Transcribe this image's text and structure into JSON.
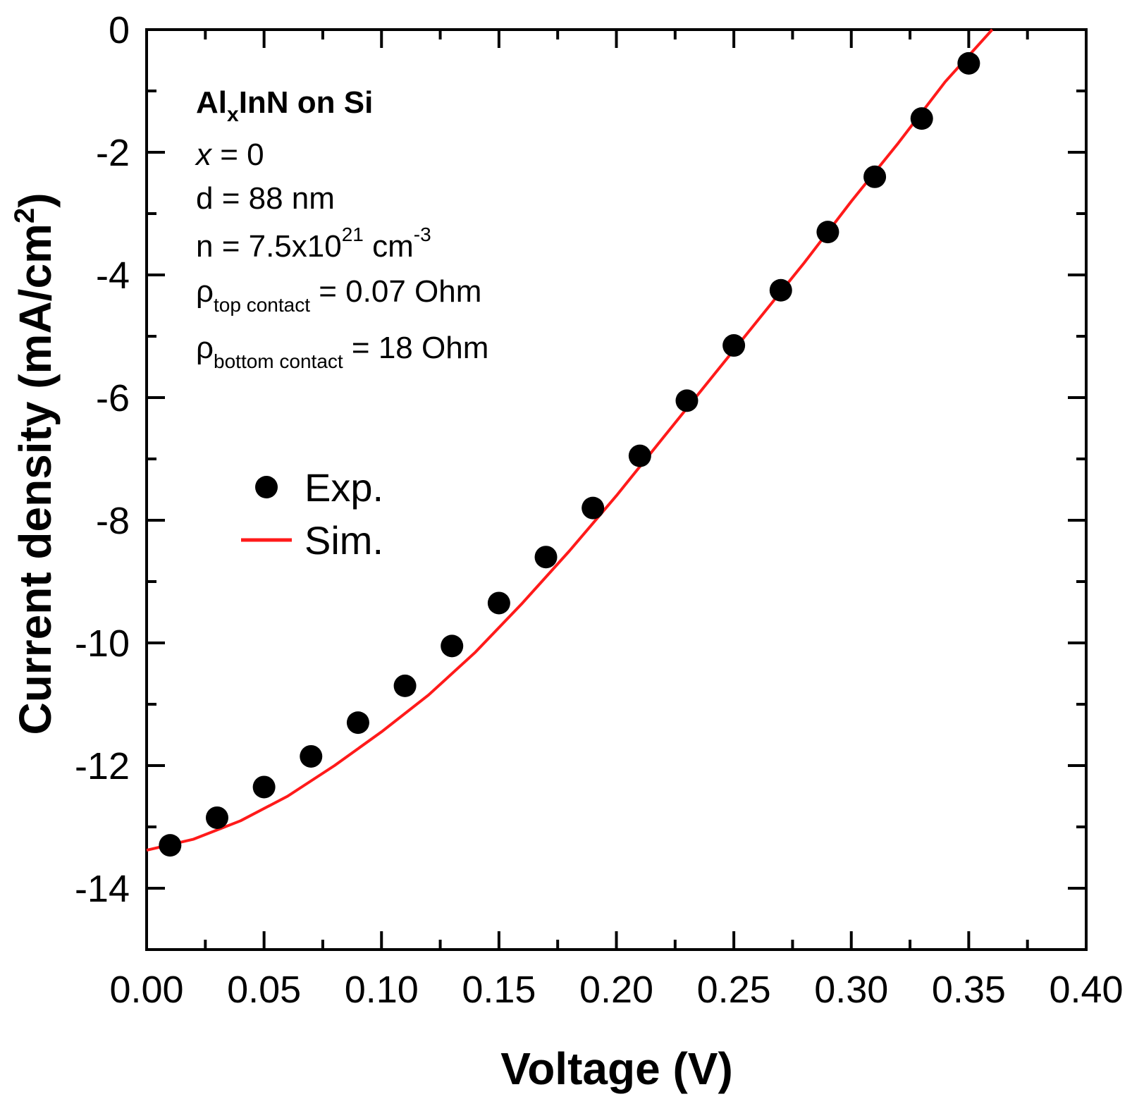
{
  "chart_data": {
    "type": "scatter",
    "title": "",
    "xlabel": "Voltage (V)",
    "ylabel": {
      "main": "Current density (mA/cm",
      "sup": "2",
      "close": ")"
    },
    "xlim": [
      0.0,
      0.4
    ],
    "ylim": [
      -15,
      0
    ],
    "x_ticks": [
      "0.00",
      "0.05",
      "0.10",
      "0.15",
      "0.20",
      "0.25",
      "0.30",
      "0.35",
      "0.40"
    ],
    "y_ticks": [
      "0",
      "-2",
      "-4",
      "-6",
      "-8",
      "-10",
      "-12",
      "-14"
    ],
    "grid": false,
    "legend_position": "middle-left",
    "series": [
      {
        "name": "Exp.",
        "kind": "markers",
        "color": "#000000",
        "x": [
          0.01,
          0.03,
          0.05,
          0.07,
          0.09,
          0.11,
          0.13,
          0.15,
          0.17,
          0.19,
          0.21,
          0.23,
          0.25,
          0.27,
          0.29,
          0.31,
          0.33,
          0.35
        ],
        "y": [
          -13.3,
          -12.85,
          -12.35,
          -11.85,
          -11.3,
          -10.7,
          -10.05,
          -9.35,
          -8.6,
          -7.8,
          -6.95,
          -6.05,
          -5.15,
          -4.25,
          -3.3,
          -2.4,
          -1.45,
          -0.55
        ]
      },
      {
        "name": "Sim.",
        "kind": "line",
        "color": "#ff1a1a",
        "x": [
          0.0,
          0.02,
          0.04,
          0.06,
          0.08,
          0.1,
          0.12,
          0.14,
          0.16,
          0.18,
          0.2,
          0.22,
          0.24,
          0.26,
          0.28,
          0.3,
          0.32,
          0.34,
          0.36
        ],
        "y": [
          -13.38,
          -13.2,
          -12.9,
          -12.5,
          -12.0,
          -11.45,
          -10.85,
          -10.15,
          -9.35,
          -8.5,
          -7.6,
          -6.65,
          -5.7,
          -4.75,
          -3.8,
          -2.8,
          -1.85,
          -0.85,
          0.1
        ]
      }
    ],
    "annotations": {
      "sample_title": {
        "pre": "Al",
        "sub": "x",
        "post": "InN on Si"
      },
      "composition": {
        "var": "x",
        "rest": " = 0"
      },
      "thickness": "d = 88 nm",
      "carrier_density": {
        "pre": "n = 7.5x10",
        "sup1": "21",
        "mid": " cm",
        "sup2": "-3"
      },
      "rho_top": {
        "sym": "ρ",
        "sub": "top contact",
        "post": " = 0.07 Ohm"
      },
      "rho_bottom": {
        "sym": "ρ",
        "sub": "bottom contact",
        "post": " = 18 Ohm"
      }
    }
  }
}
